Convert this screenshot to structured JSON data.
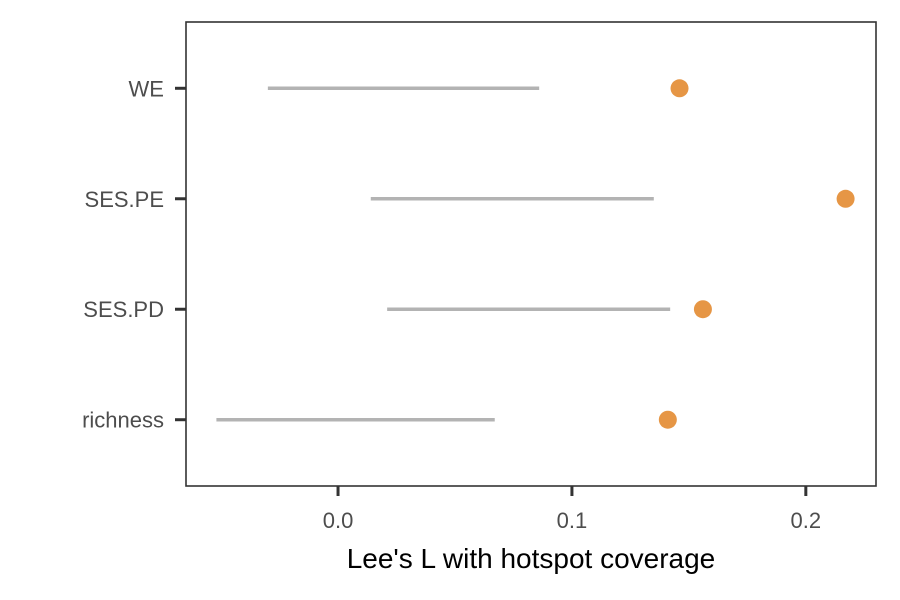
{
  "chart_data": {
    "type": "dot-interval",
    "xlabel": "Lee's L with hotspot coverage",
    "ylabel": "",
    "xlim": [
      -0.065,
      0.23
    ],
    "x_ticks": [
      0.0,
      0.1,
      0.2
    ],
    "x_tick_labels": [
      "0.0",
      "0.1",
      "0.2"
    ],
    "categories": [
      "richness",
      "SES.PD",
      "SES.PE",
      "WE"
    ],
    "intervals": [
      {
        "label": "richness",
        "low": -0.052,
        "high": 0.067
      },
      {
        "label": "SES.PD",
        "low": 0.021,
        "high": 0.142
      },
      {
        "label": "SES.PE",
        "low": 0.014,
        "high": 0.135
      },
      {
        "label": "WE",
        "low": -0.03,
        "high": 0.086
      }
    ],
    "points": [
      {
        "label": "richness",
        "value": 0.141
      },
      {
        "label": "SES.PD",
        "value": 0.156
      },
      {
        "label": "SES.PE",
        "value": 0.217
      },
      {
        "label": "WE",
        "value": 0.146
      }
    ],
    "grid": false,
    "legend": "none",
    "colors": {
      "interval": "#b3b3b3",
      "point": "#e69645",
      "axis": "#333333",
      "tick_text": "#4d4d4d"
    }
  }
}
